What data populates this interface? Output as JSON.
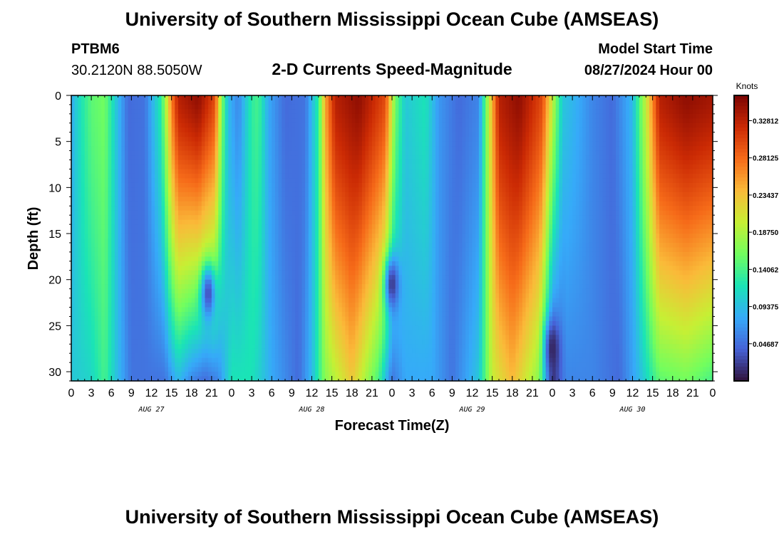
{
  "header": {
    "title": "University of Southern Mississippi Ocean Cube (AMSEAS)",
    "station": "PTBM6",
    "coords": "30.2120N  88.5050W",
    "subtitle": "2-D Currents Speed-Magnitude",
    "model_start_label": "Model Start Time",
    "model_start_value": "08/27/2024 Hour 00"
  },
  "footer": {
    "title": "University of Southern Mississippi Ocean Cube (AMSEAS)"
  },
  "chart_data": {
    "type": "heatmap",
    "title": "2-D Currents Speed-Magnitude",
    "xlabel": "Forecast Time(Z)",
    "ylabel": "Depth (ft)",
    "x_range_hours": [
      0,
      96
    ],
    "y_range_ft": [
      0,
      31
    ],
    "x_tick_labels": [
      "0",
      "3",
      "6",
      "9",
      "12",
      "15",
      "18",
      "21",
      "0",
      "3",
      "6",
      "9",
      "12",
      "15",
      "18",
      "21",
      "0",
      "3",
      "6",
      "9",
      "12",
      "15",
      "18",
      "21",
      "0",
      "3",
      "6",
      "9",
      "12",
      "15",
      "18",
      "21",
      "0"
    ],
    "y_ticks": [
      0,
      5,
      10,
      15,
      20,
      25,
      30
    ],
    "day_labels": [
      {
        "text": "AUG 27",
        "hour": 12
      },
      {
        "text": "AUG 28",
        "hour": 36
      },
      {
        "text": "AUG 29",
        "hour": 60
      },
      {
        "text": "AUG 30",
        "hour": 84
      }
    ],
    "colorbar": {
      "label": "Knots",
      "range": [
        0.0,
        0.36
      ],
      "tick_labels": [
        "0.04687",
        "0.09375",
        "0.14062",
        "0.18750",
        "0.23437",
        "0.28125",
        "0.32812"
      ]
    },
    "surface_speed_knots": [
      {
        "hour": 0,
        "speed": 0.08
      },
      {
        "hour": 1,
        "speed": 0.11
      },
      {
        "hour": 3,
        "speed": 0.15
      },
      {
        "hour": 5,
        "speed": 0.16
      },
      {
        "hour": 7,
        "speed": 0.09
      },
      {
        "hour": 8.5,
        "speed": 0.045
      },
      {
        "hour": 11,
        "speed": 0.05
      },
      {
        "hour": 13.5,
        "speed": 0.13
      },
      {
        "hour": 15,
        "speed": 0.27
      },
      {
        "hour": 16,
        "speed": 0.33
      },
      {
        "hour": 19,
        "speed": 0.35
      },
      {
        "hour": 21.5,
        "speed": 0.3
      },
      {
        "hour": 22.5,
        "speed": 0.17
      },
      {
        "hour": 23.5,
        "speed": 0.09
      },
      {
        "hour": 25,
        "speed": 0.06
      },
      {
        "hour": 27,
        "speed": 0.13
      },
      {
        "hour": 28,
        "speed": 0.14
      },
      {
        "hour": 29.5,
        "speed": 0.08
      },
      {
        "hour": 32,
        "speed": 0.045
      },
      {
        "hour": 35,
        "speed": 0.05
      },
      {
        "hour": 37,
        "speed": 0.13
      },
      {
        "hour": 38,
        "speed": 0.25
      },
      {
        "hour": 39.5,
        "speed": 0.33
      },
      {
        "hour": 43,
        "speed": 0.35
      },
      {
        "hour": 47,
        "speed": 0.3
      },
      {
        "hour": 48.5,
        "speed": 0.16
      },
      {
        "hour": 50,
        "speed": 0.1
      },
      {
        "hour": 53,
        "speed": 0.12
      },
      {
        "hour": 55,
        "speed": 0.07
      },
      {
        "hour": 58,
        "speed": 0.045
      },
      {
        "hour": 61,
        "speed": 0.06
      },
      {
        "hour": 62.5,
        "speed": 0.2
      },
      {
        "hour": 64,
        "speed": 0.33
      },
      {
        "hour": 67,
        "speed": 0.35
      },
      {
        "hour": 70.5,
        "speed": 0.3
      },
      {
        "hour": 72,
        "speed": 0.2
      },
      {
        "hour": 73.5,
        "speed": 0.1
      },
      {
        "hour": 76,
        "speed": 0.08
      },
      {
        "hour": 78,
        "speed": 0.06
      },
      {
        "hour": 81,
        "speed": 0.045
      },
      {
        "hour": 84,
        "speed": 0.09
      },
      {
        "hour": 86,
        "speed": 0.2
      },
      {
        "hour": 88,
        "speed": 0.33
      },
      {
        "hour": 92,
        "speed": 0.35
      },
      {
        "hour": 96,
        "speed": 0.34
      }
    ],
    "bottom_speed_knots": [
      {
        "hour": 0,
        "speed": 0.1
      },
      {
        "hour": 3,
        "speed": 0.11
      },
      {
        "hour": 5,
        "speed": 0.14
      },
      {
        "hour": 7,
        "speed": 0.09
      },
      {
        "hour": 9,
        "speed": 0.05
      },
      {
        "hour": 14,
        "speed": 0.05
      },
      {
        "hour": 16,
        "speed": 0.09
      },
      {
        "hour": 18,
        "speed": 0.06
      },
      {
        "hour": 20,
        "speed": 0.045
      },
      {
        "hour": 22,
        "speed": 0.06
      },
      {
        "hour": 24,
        "speed": 0.12
      },
      {
        "hour": 27,
        "speed": 0.12
      },
      {
        "hour": 30,
        "speed": 0.08
      },
      {
        "hour": 34,
        "speed": 0.045
      },
      {
        "hour": 36,
        "speed": 0.09
      },
      {
        "hour": 38,
        "speed": 0.17
      },
      {
        "hour": 42,
        "speed": 0.23
      },
      {
        "hour": 46,
        "speed": 0.14
      },
      {
        "hour": 48,
        "speed": 0.05
      },
      {
        "hour": 50,
        "speed": 0.08
      },
      {
        "hour": 54,
        "speed": 0.08
      },
      {
        "hour": 57,
        "speed": 0.05
      },
      {
        "hour": 61,
        "speed": 0.1
      },
      {
        "hour": 63,
        "speed": 0.2
      },
      {
        "hour": 66,
        "speed": 0.24
      },
      {
        "hour": 70,
        "speed": 0.17
      },
      {
        "hour": 72,
        "speed": 0.015
      },
      {
        "hour": 74,
        "speed": 0.06
      },
      {
        "hour": 78,
        "speed": 0.06
      },
      {
        "hour": 82,
        "speed": 0.045
      },
      {
        "hour": 85,
        "speed": 0.09
      },
      {
        "hour": 88,
        "speed": 0.15
      },
      {
        "hour": 92,
        "speed": 0.16
      },
      {
        "hour": 96,
        "speed": 0.14
      }
    ],
    "low_speed_spots": [
      {
        "hour": 20.5,
        "depth_ft": 21.5,
        "speed": 0.03
      },
      {
        "hour": 48,
        "depth_ft": 20.5,
        "speed": 0.02
      },
      {
        "hour": 72,
        "depth_ft": 27.5,
        "speed": 0.01
      }
    ]
  },
  "colors": {
    "colormap": [
      "#30123b",
      "#4662d7",
      "#36aaf9",
      "#1ae4b6",
      "#72fe5e",
      "#c7ef34",
      "#faba39",
      "#f66b19",
      "#cb2a04",
      "#7a0403"
    ]
  }
}
